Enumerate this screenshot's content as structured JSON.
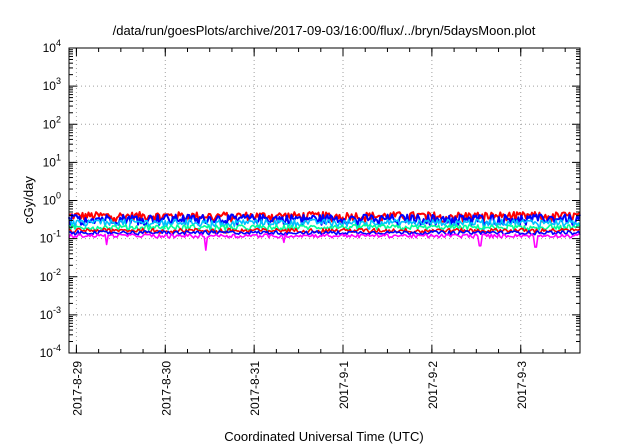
{
  "chart_data": {
    "type": "line",
    "title": "/data/run/goesPlots/archive/2017-09-03/16:00/flux/../bryn/5daysMoon.plot",
    "xlabel": "Coordinated Universal Time (UTC)",
    "ylabel": "cGy/day",
    "yscale": "log",
    "ylim": [
      0.0001,
      10000
    ],
    "y_ticks": [
      {
        "base": "10",
        "exp": "-4"
      },
      {
        "base": "10",
        "exp": "-3"
      },
      {
        "base": "10",
        "exp": "-2"
      },
      {
        "base": "10",
        "exp": "-1"
      },
      {
        "base": "10",
        "exp": "0"
      },
      {
        "base": "10",
        "exp": "1"
      },
      {
        "base": "10",
        "exp": "2"
      },
      {
        "base": "10",
        "exp": "3"
      },
      {
        "base": "10",
        "exp": "4"
      }
    ],
    "xlim": [
      "2017-08-28 22:00",
      "2017-09-03 16:00"
    ],
    "x_ticks": [
      "2017-8-29",
      "2017-8-30",
      "2017-8-31",
      "2017-9-1",
      "2017-9-2",
      "2017-9-3"
    ],
    "x_tick_dates": [
      "2017-08-29",
      "2017-08-30",
      "2017-08-31",
      "2017-09-01",
      "2017-09-02",
      "2017-09-03"
    ],
    "grid": true,
    "series": [
      {
        "color": "#ff0000",
        "base": 0.4,
        "amp": 0.1,
        "dips": []
      },
      {
        "color": "#0000ff",
        "base": 0.34,
        "amp": 0.09,
        "dips": []
      },
      {
        "color": "#00c0ff",
        "base": 0.27,
        "amp": 0.05,
        "dips": [
          [
            "2017-08-29 14:00",
            0.17
          ],
          [
            "2017-08-30 12:00",
            0.16
          ],
          [
            "2017-08-31 01:00",
            0.17
          ],
          [
            "2017-09-01 07:00",
            0.18
          ],
          [
            "2017-09-02 14:00",
            0.17
          ],
          [
            "2017-09-03 05:00",
            0.17
          ]
        ]
      },
      {
        "color": "#00ff99",
        "base": 0.2,
        "amp": 0.03,
        "dips": []
      },
      {
        "color": "#ff0000",
        "base": 0.165,
        "amp": 0.02,
        "dips": []
      },
      {
        "color": "#0000ff",
        "base": 0.145,
        "amp": 0.015,
        "dips": []
      },
      {
        "color": "#ff00ff",
        "base": 0.12,
        "amp": 0.012,
        "dips": [
          [
            "2017-08-29 08:00",
            0.07
          ],
          [
            "2017-08-30 11:00",
            0.05
          ],
          [
            "2017-08-31 08:00",
            0.08
          ],
          [
            "2017-09-02 13:00",
            0.065
          ],
          [
            "2017-09-03 04:00",
            0.06
          ]
        ]
      }
    ]
  }
}
